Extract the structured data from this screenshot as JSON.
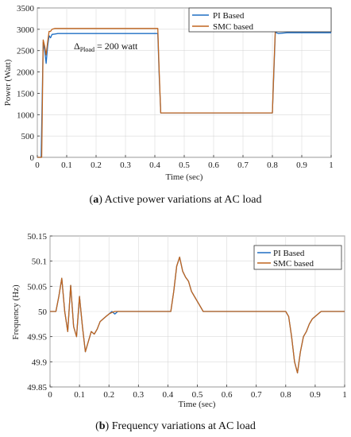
{
  "chart_data": [
    {
      "type": "line",
      "xlabel": "Time (sec)",
      "ylabel": "Power (Watt)",
      "xlim": [
        0,
        1
      ],
      "ylim": [
        0,
        3500
      ],
      "xticks": [
        "0",
        "0.1",
        "0.2",
        "0.3",
        "0.4",
        "0.5",
        "0.6",
        "0.7",
        "0.8",
        "0.9",
        "1"
      ],
      "yticks": [
        "0",
        "500",
        "1000",
        "1500",
        "2000",
        "2500",
        "3000",
        "3500"
      ],
      "legend_position": "top-right",
      "annotation": {
        "delta": "Δ",
        "sub": "Pload",
        "rest": " = 200 watt"
      },
      "caption": {
        "tag": "a",
        "text": " Active power variations at AC load"
      },
      "series": [
        {
          "name": "PI Based",
          "color": "#1f6fc4",
          "x": [
            0,
            0.013,
            0.02,
            0.025,
            0.03,
            0.035,
            0.04,
            0.045,
            0.05,
            0.06,
            0.07,
            0.08,
            0.1,
            0.2,
            0.3,
            0.41,
            0.415,
            0.42,
            0.43,
            0.6,
            0.8,
            0.805,
            0.81,
            0.82,
            0.85,
            1.0
          ],
          "y": [
            0,
            0,
            2700,
            2500,
            2200,
            2600,
            2850,
            2800,
            2880,
            2890,
            2900,
            2900,
            2900,
            2900,
            2900,
            2900,
            1900,
            1040,
            1040,
            1040,
            1040,
            2000,
            2930,
            2900,
            2920,
            2920
          ]
        },
        {
          "name": "SMC based",
          "color": "#c0651e",
          "x": [
            0,
            0.015,
            0.02,
            0.025,
            0.03,
            0.035,
            0.04,
            0.045,
            0.05,
            0.06,
            0.1,
            0.2,
            0.3,
            0.41,
            0.415,
            0.42,
            0.43,
            0.6,
            0.8,
            0.805,
            0.81,
            0.82,
            0.85,
            1.0
          ],
          "y": [
            0,
            0,
            2750,
            2600,
            2400,
            2700,
            2950,
            2950,
            3000,
            3020,
            3020,
            3020,
            3020,
            3020,
            2000,
            1040,
            1040,
            1040,
            1040,
            2100,
            3000,
            2950,
            3000,
            3000
          ]
        }
      ]
    },
    {
      "type": "line",
      "xlabel": "Time (sec)",
      "ylabel": "Frequency (Hz)",
      "xlim": [
        0,
        1
      ],
      "ylim": [
        49.85,
        50.15
      ],
      "xticks": [
        "0",
        "0.1",
        "0.2",
        "0.3",
        "0.4",
        "0.5",
        "0.6",
        "0.7",
        "0.8",
        "0.9",
        "1"
      ],
      "yticks": [
        "49.85",
        "49.9",
        "49.95",
        "50",
        "50.05",
        "50.1",
        "50.15"
      ],
      "legend_position": "top-right",
      "caption": {
        "tag": "b",
        "text": " Frequency variations at AC load"
      },
      "series": [
        {
          "name": "PI Based",
          "color": "#1f6fc4",
          "x": [
            0,
            0.02,
            0.03,
            0.04,
            0.05,
            0.06,
            0.07,
            0.08,
            0.09,
            0.1,
            0.11,
            0.12,
            0.13,
            0.14,
            0.15,
            0.16,
            0.17,
            0.18,
            0.19,
            0.2,
            0.21,
            0.22,
            0.23,
            0.25,
            0.3,
            0.41,
            0.42,
            0.43,
            0.44,
            0.45,
            0.46,
            0.47,
            0.48,
            0.49,
            0.5,
            0.52,
            0.55,
            0.6,
            0.8,
            0.81,
            0.82,
            0.83,
            0.84,
            0.85,
            0.86,
            0.87,
            0.88,
            0.89,
            0.9,
            0.92,
            0.95,
            1.0
          ],
          "y": [
            50.0,
            50.0,
            50.03,
            50.066,
            50.0,
            49.96,
            50.052,
            49.97,
            49.95,
            50.03,
            49.97,
            49.92,
            49.94,
            49.96,
            49.955,
            49.965,
            49.98,
            49.985,
            49.99,
            49.995,
            50.0,
            49.995,
            50.0,
            50.0,
            50.0,
            50.0,
            50.04,
            50.09,
            50.108,
            50.08,
            50.068,
            50.06,
            50.04,
            50.03,
            50.02,
            50.0,
            50.0,
            50.0,
            50.0,
            49.99,
            49.95,
            49.9,
            49.878,
            49.92,
            49.95,
            49.96,
            49.975,
            49.985,
            49.99,
            50.0,
            50.0,
            50.0
          ]
        },
        {
          "name": "SMC based",
          "color": "#c0651e",
          "x": [
            0,
            0.02,
            0.03,
            0.04,
            0.05,
            0.06,
            0.07,
            0.08,
            0.09,
            0.1,
            0.11,
            0.12,
            0.13,
            0.14,
            0.15,
            0.16,
            0.17,
            0.18,
            0.19,
            0.2,
            0.21,
            0.22,
            0.23,
            0.25,
            0.3,
            0.41,
            0.42,
            0.43,
            0.44,
            0.45,
            0.46,
            0.47,
            0.48,
            0.49,
            0.5,
            0.52,
            0.55,
            0.6,
            0.8,
            0.81,
            0.82,
            0.83,
            0.84,
            0.85,
            0.86,
            0.87,
            0.88,
            0.89,
            0.9,
            0.92,
            0.95,
            1.0
          ],
          "y": [
            50.0,
            50.0,
            50.03,
            50.066,
            50.0,
            49.96,
            50.052,
            49.97,
            49.95,
            50.03,
            49.97,
            49.92,
            49.94,
            49.96,
            49.955,
            49.965,
            49.98,
            49.985,
            49.99,
            49.995,
            49.998,
            50.0,
            50.0,
            50.0,
            50.0,
            50.0,
            50.04,
            50.09,
            50.108,
            50.08,
            50.068,
            50.06,
            50.04,
            50.03,
            50.02,
            50.0,
            50.0,
            50.0,
            50.0,
            49.99,
            49.95,
            49.9,
            49.878,
            49.92,
            49.95,
            49.96,
            49.975,
            49.985,
            49.99,
            50.0,
            50.0,
            50.0
          ]
        }
      ]
    }
  ]
}
